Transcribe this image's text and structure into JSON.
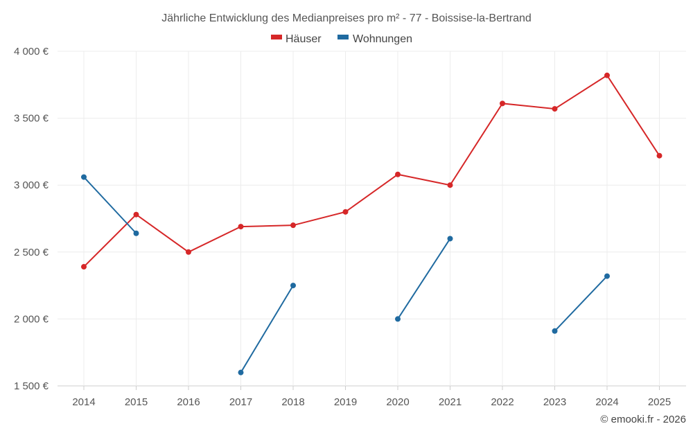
{
  "chart_data": {
    "type": "line",
    "title": "Jährliche Entwicklung des Medianpreises pro m² - 77 - Boissise-la-Bertrand",
    "xlabel": "",
    "ylabel": "",
    "x": [
      "2014",
      "2015",
      "2016",
      "2017",
      "2018",
      "2019",
      "2020",
      "2021",
      "2022",
      "2023",
      "2024",
      "2025"
    ],
    "ylim": [
      1500,
      4000
    ],
    "yticks": [
      1500,
      2000,
      2500,
      3000,
      3500,
      4000
    ],
    "ytick_labels": [
      "1 500 €",
      "2 000 €",
      "2 500 €",
      "3 000 €",
      "3 500 €",
      "4 000 €"
    ],
    "grid": true,
    "legend_position": "top-center",
    "series": [
      {
        "name": "Häuser",
        "color": "#d62728",
        "values": [
          2390,
          2780,
          2500,
          2690,
          2700,
          2800,
          3080,
          3000,
          3610,
          3570,
          3820,
          3220
        ]
      },
      {
        "name": "Wohnungen",
        "color": "#1f6aa0",
        "values": [
          3060,
          2640,
          null,
          1600,
          2250,
          null,
          2000,
          2600,
          null,
          1910,
          2320,
          null
        ]
      }
    ]
  },
  "credit": "© emooki.fr - 2026"
}
